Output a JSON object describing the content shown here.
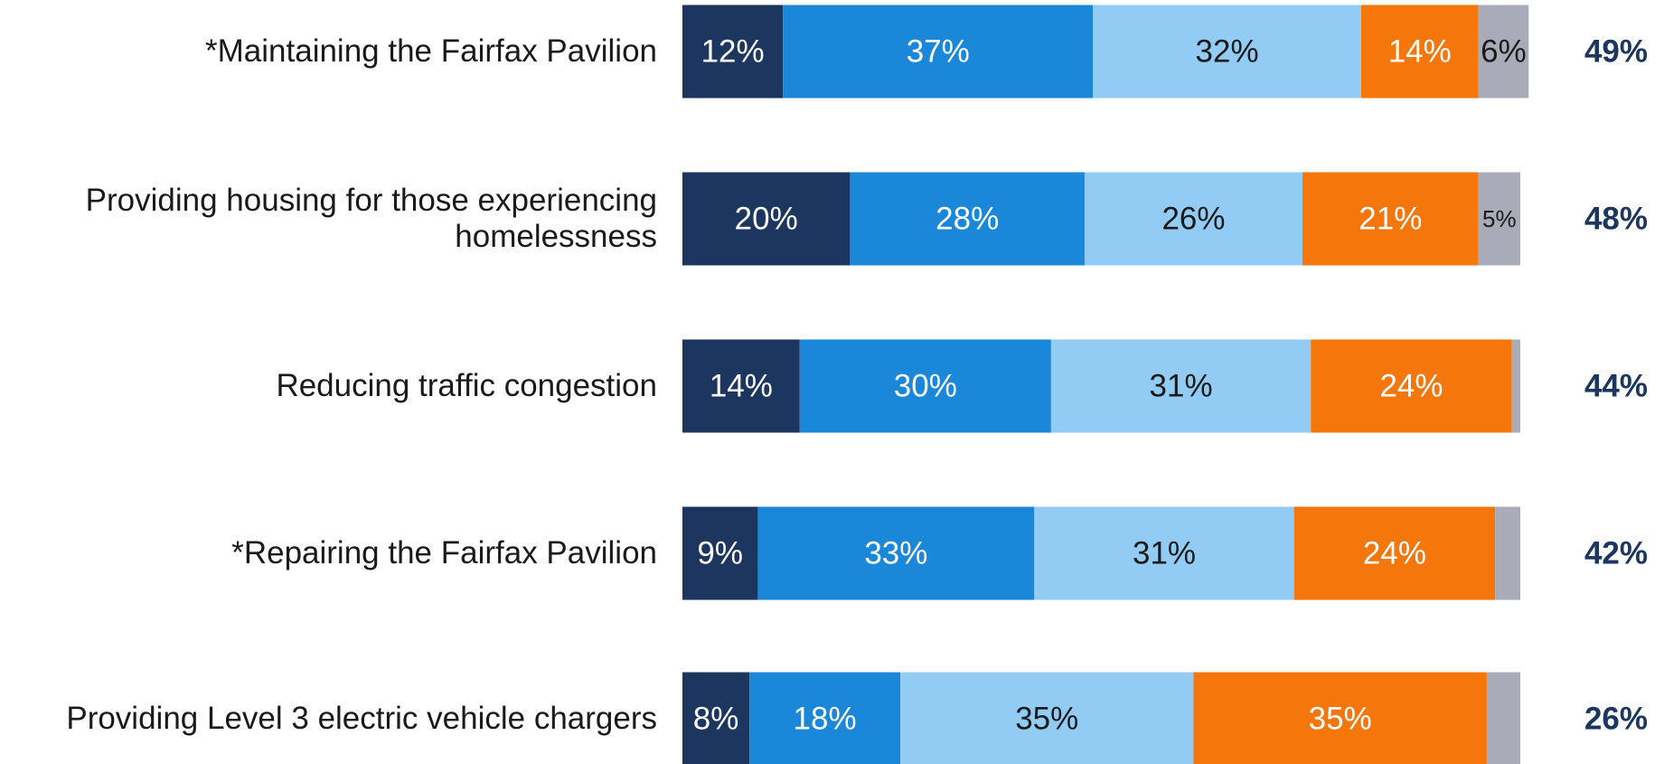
{
  "chart_data": {
    "type": "stacked-bar-horizontal",
    "categories": [
      "*Maintaining the Fairfax Pavilion",
      "Providing housing for those experiencing\nhomelessness",
      "Reducing traffic congestion",
      "*Repairing the Fairfax Pavilion",
      "Providing Level 3 electric vehicle chargers"
    ],
    "xlim": [
      0,
      100
    ],
    "series": [
      {
        "color": "#1c3660",
        "values": [
          12,
          20,
          14,
          9,
          8
        ],
        "value_labels": [
          "12%",
          "20%",
          "14%",
          "9%",
          "8%"
        ]
      },
      {
        "color": "#1a87d8",
        "values": [
          37,
          28,
          30,
          33,
          18
        ],
        "value_labels": [
          "37%",
          "28%",
          "30%",
          "33%",
          "18%"
        ]
      },
      {
        "color": "#92cbf3",
        "values": [
          32,
          26,
          31,
          31,
          35
        ],
        "value_labels": [
          "32%",
          "26%",
          "31%",
          "31%",
          "35%"
        ]
      },
      {
        "color": "#f5760a",
        "values": [
          14,
          21,
          24,
          24,
          35
        ],
        "value_labels": [
          "14%",
          "21%",
          "24%",
          "24%",
          "35%"
        ]
      },
      {
        "color": "#a9abb9",
        "values": [
          6,
          5,
          1,
          3,
          4
        ],
        "value_labels": [
          "6%",
          "5%",
          null,
          null,
          null
        ]
      }
    ],
    "totals": {
      "color": "#1c3660",
      "values": [
        49,
        48,
        44,
        42,
        26
      ],
      "value_labels": [
        "49%",
        "48%",
        "44%",
        "42%",
        "26%"
      ]
    }
  }
}
